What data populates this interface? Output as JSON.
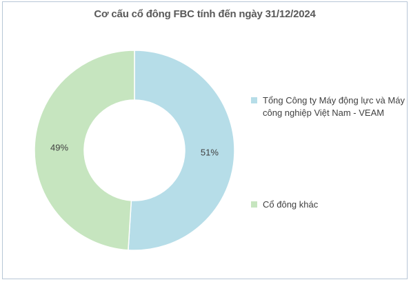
{
  "chart_data": {
    "type": "pie",
    "donut": true,
    "title": "Cơ cấu cổ đông FBC tính đến ngày 31/12/2024",
    "slices": [
      {
        "name": "Tổng Công ty Máy động lực và Máy công nghiệp Việt Nam - VEAM",
        "value": 51,
        "label": "51%",
        "color": "#b6dde8"
      },
      {
        "name": "Cổ đông khác",
        "value": 49,
        "label": "49%",
        "color": "#c6e5bf"
      }
    ],
    "legend_position": "right"
  }
}
